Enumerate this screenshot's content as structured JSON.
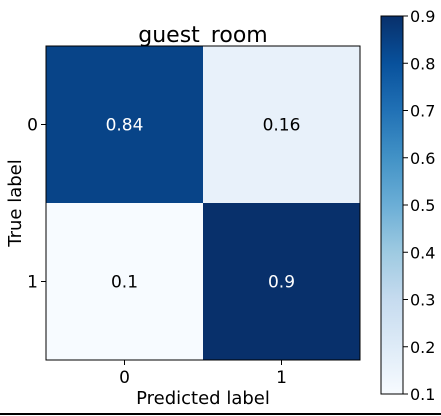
{
  "chart_data": {
    "type": "heatmap",
    "title": "guest_room",
    "xlabel": "Predicted label",
    "ylabel": "True label",
    "x_categories": [
      "0",
      "1"
    ],
    "y_categories": [
      "0",
      "1"
    ],
    "values": [
      [
        0.84,
        0.16
      ],
      [
        0.1,
        0.9
      ]
    ],
    "value_labels": [
      [
        "0.84",
        "0.16"
      ],
      [
        "0.1",
        "0.9"
      ]
    ],
    "colormap": "Blues",
    "colorbar": {
      "range": [
        0.1,
        0.9
      ],
      "ticks": [
        "0.1",
        "0.2",
        "0.3",
        "0.4",
        "0.5",
        "0.6",
        "0.7",
        "0.8",
        "0.9"
      ]
    }
  }
}
